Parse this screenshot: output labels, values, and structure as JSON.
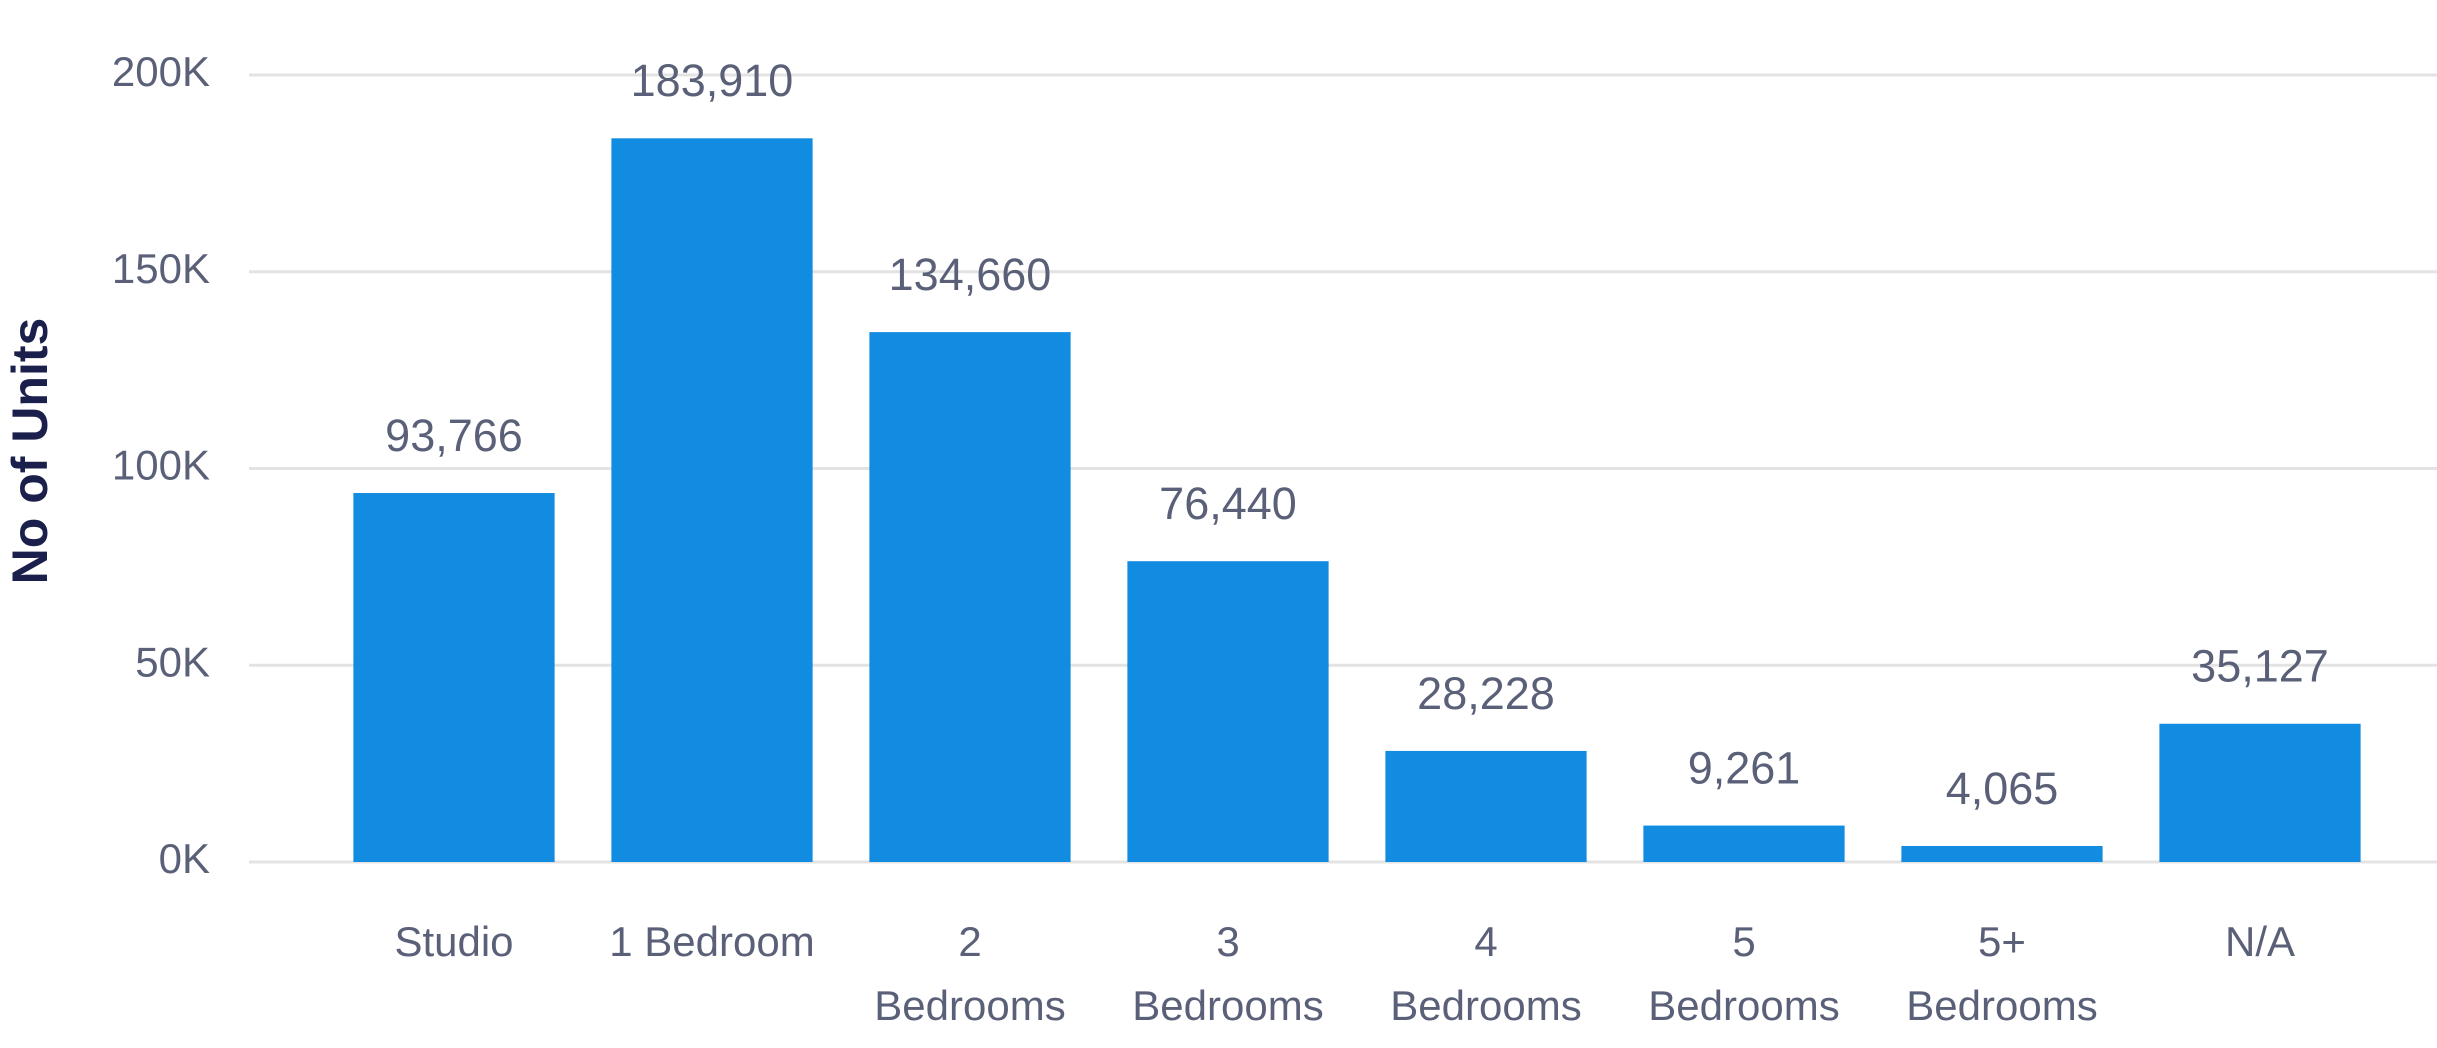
{
  "chart_data": {
    "type": "bar",
    "y_label": "No of Units",
    "categories": [
      "Studio",
      "1 Bedroom",
      "2 Bedrooms",
      "3 Bedrooms",
      "4 Bedrooms",
      "5 Bedrooms",
      "5+ Bedrooms",
      "N/A"
    ],
    "values": [
      93766,
      183910,
      134660,
      76440,
      28228,
      9261,
      4065,
      35127
    ],
    "value_labels": [
      "93,766",
      "183,910",
      "134,660",
      "76,440",
      "28,228",
      "9,261",
      "4,065",
      "35,127"
    ],
    "color": "#118ce0",
    "ylim": [
      0,
      200000
    ],
    "yticks": [
      {
        "value": 0,
        "label": "0K"
      },
      {
        "value": 50000,
        "label": "50K"
      },
      {
        "value": 100000,
        "label": "100K"
      },
      {
        "value": 150000,
        "label": "150K"
      },
      {
        "value": 200000,
        "label": "200K"
      }
    ],
    "grid": true
  }
}
